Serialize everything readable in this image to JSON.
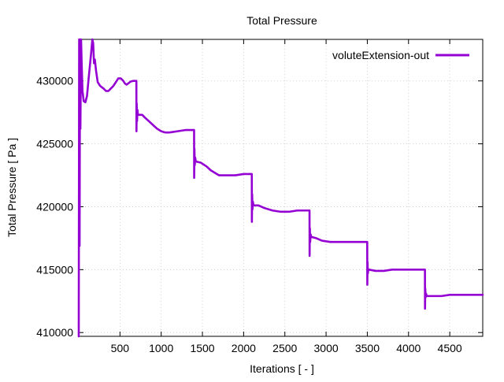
{
  "chart_data": {
    "type": "line",
    "title": "Total Pressure",
    "xlabel": "Iterations [ - ]",
    "ylabel": "Total Pressure [ Pa ]",
    "xlim": [
      0,
      4900
    ],
    "ylim": [
      409700,
      433300
    ],
    "grid": true,
    "legend_position": "top-right",
    "x_ticks": [
      500,
      1000,
      1500,
      2000,
      2500,
      3000,
      3500,
      4000,
      4500
    ],
    "x_tick_labels": [
      "500",
      "1000",
      "1500",
      "2000",
      "2500",
      "3000",
      "3500",
      "4000",
      "4500"
    ],
    "y_ticks": [
      410000,
      415000,
      420000,
      425000,
      430000
    ],
    "y_tick_labels": [
      "410000",
      "415000",
      "420000",
      "425000",
      "430000"
    ],
    "series": [
      {
        "name": "voluteExtension-out",
        "color": "#9400D3",
        "points": [
          [
            0,
            409700
          ],
          [
            5,
            433300
          ],
          [
            10,
            416900
          ],
          [
            15,
            433300
          ],
          [
            20,
            426200
          ],
          [
            28,
            433300
          ],
          [
            35,
            431500
          ],
          [
            45,
            429200
          ],
          [
            60,
            428400
          ],
          [
            80,
            428300
          ],
          [
            100,
            428800
          ],
          [
            120,
            430200
          ],
          [
            150,
            432200
          ],
          [
            165,
            433300
          ],
          [
            175,
            433000
          ],
          [
            185,
            431400
          ],
          [
            195,
            431700
          ],
          [
            210,
            430800
          ],
          [
            230,
            429900
          ],
          [
            260,
            429600
          ],
          [
            300,
            429400
          ],
          [
            330,
            429200
          ],
          [
            360,
            429200
          ],
          [
            390,
            429400
          ],
          [
            420,
            429600
          ],
          [
            450,
            429900
          ],
          [
            480,
            430200
          ],
          [
            510,
            430200
          ],
          [
            540,
            430000
          ],
          [
            560,
            429800
          ],
          [
            580,
            429700
          ],
          [
            600,
            429800
          ],
          [
            630,
            429950
          ],
          [
            660,
            430000
          ],
          [
            699,
            430000
          ],
          [
            700,
            426000
          ],
          [
            703,
            428200
          ],
          [
            707,
            426800
          ],
          [
            712,
            427700
          ],
          [
            718,
            427300
          ],
          [
            730,
            427300
          ],
          [
            770,
            427300
          ],
          [
            800,
            427100
          ],
          [
            850,
            426800
          ],
          [
            900,
            426500
          ],
          [
            950,
            426200
          ],
          [
            1000,
            426000
          ],
          [
            1050,
            425900
          ],
          [
            1100,
            425900
          ],
          [
            1200,
            426000
          ],
          [
            1300,
            426100
          ],
          [
            1399,
            426100
          ],
          [
            1400,
            422300
          ],
          [
            1403,
            424600
          ],
          [
            1407,
            423300
          ],
          [
            1412,
            423900
          ],
          [
            1420,
            423600
          ],
          [
            1480,
            423500
          ],
          [
            1550,
            423200
          ],
          [
            1600,
            422900
          ],
          [
            1650,
            422700
          ],
          [
            1700,
            422500
          ],
          [
            1750,
            422500
          ],
          [
            1800,
            422500
          ],
          [
            1900,
            422500
          ],
          [
            2000,
            422600
          ],
          [
            2099,
            422600
          ],
          [
            2100,
            418800
          ],
          [
            2103,
            421000
          ],
          [
            2107,
            419800
          ],
          [
            2112,
            420400
          ],
          [
            2120,
            420100
          ],
          [
            2180,
            420100
          ],
          [
            2250,
            419900
          ],
          [
            2350,
            419700
          ],
          [
            2450,
            419600
          ],
          [
            2550,
            419600
          ],
          [
            2650,
            419700
          ],
          [
            2799,
            419700
          ],
          [
            2800,
            416100
          ],
          [
            2803,
            418300
          ],
          [
            2807,
            417200
          ],
          [
            2812,
            417800
          ],
          [
            2820,
            417600
          ],
          [
            2880,
            417500
          ],
          [
            2950,
            417300
          ],
          [
            3050,
            417200
          ],
          [
            3150,
            417200
          ],
          [
            3300,
            417200
          ],
          [
            3499,
            417200
          ],
          [
            3500,
            413800
          ],
          [
            3503,
            415600
          ],
          [
            3507,
            414700
          ],
          [
            3512,
            415000
          ],
          [
            3520,
            415000
          ],
          [
            3600,
            414900
          ],
          [
            3700,
            414900
          ],
          [
            3800,
            415000
          ],
          [
            3900,
            415000
          ],
          [
            4000,
            415000
          ],
          [
            4199,
            415000
          ],
          [
            4200,
            411900
          ],
          [
            4203,
            413500
          ],
          [
            4207,
            412800
          ],
          [
            4212,
            413100
          ],
          [
            4220,
            412900
          ],
          [
            4300,
            412900
          ],
          [
            4400,
            412900
          ],
          [
            4500,
            413000
          ],
          [
            4600,
            413000
          ],
          [
            4700,
            413000
          ],
          [
            4900,
            413000
          ]
        ]
      }
    ]
  }
}
